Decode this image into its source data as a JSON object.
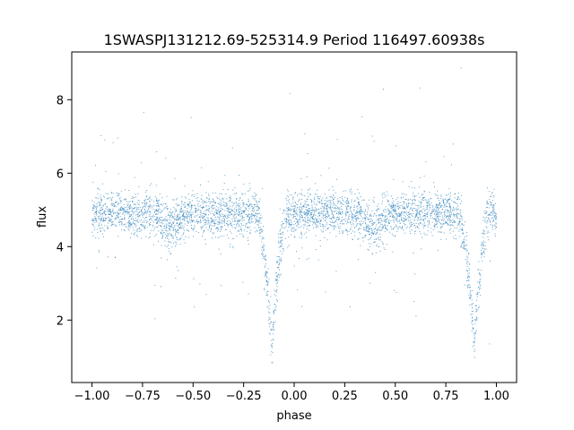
{
  "chart_data": {
    "type": "scatter",
    "title": "1SWASPJ131212.69-525314.9 Period 116497.60938s",
    "xlabel": "phase",
    "ylabel": "flux",
    "xlim": [
      -1.1,
      1.1
    ],
    "ylim": [
      0.3,
      9.3
    ],
    "xticks": [
      -1.0,
      -0.75,
      -0.5,
      -0.25,
      0.0,
      0.25,
      0.5,
      0.75,
      1.0
    ],
    "xtick_labels": [
      "−1.00",
      "−0.75",
      "−0.50",
      "−0.25",
      "0.00",
      "0.25",
      "0.50",
      "0.75",
      "1.00"
    ],
    "yticks": [
      2,
      4,
      6,
      8
    ],
    "ytick_labels": [
      "2",
      "4",
      "6",
      "8"
    ],
    "grid": false,
    "legend": "none",
    "point_color": "#1f77b4",
    "x_range": [
      -1.0,
      1.0
    ],
    "baseline_flux": 4.9,
    "scatter_sigma": 0.3,
    "primary_eclipses": [
      {
        "phase": -0.11,
        "min_flux": 1.4
      },
      {
        "phase": 0.89,
        "min_flux": 1.4
      }
    ],
    "secondary_eclipses": [
      {
        "phase": -0.61,
        "min_flux": 4.5
      },
      {
        "phase": 0.39,
        "min_flux": 4.5
      }
    ]
  }
}
